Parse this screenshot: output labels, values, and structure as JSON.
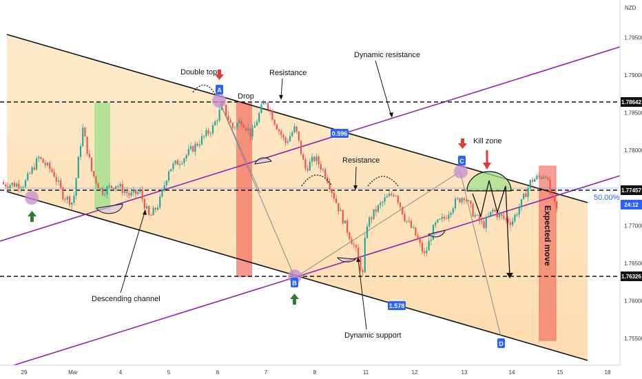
{
  "chart_data": {
    "type": "candlestick",
    "currency": "NZD",
    "ylim": [
      1.75,
      1.798
    ],
    "y_ticks": [
      1.755,
      1.76,
      1.765,
      1.77,
      1.775,
      1.78,
      1.785,
      1.79,
      1.795
    ],
    "x_ticks": [
      "29",
      "Mar",
      "4",
      "5",
      "6",
      "7",
      "8",
      "11",
      "12",
      "13",
      "14",
      "15",
      "18"
    ],
    "price_labels": [
      {
        "value": "1.78642",
        "color": "#111111"
      },
      {
        "value": "1.77457",
        "color": "#111111"
      },
      {
        "value": "24:12",
        "color": "#2962ff"
      },
      {
        "value": "1.76326",
        "color": "#111111"
      }
    ],
    "fib_label": "50.00%",
    "levels": {
      "dashed_top": 1.78642,
      "dashed_mid": 1.77457,
      "dashed_low": 1.76326
    },
    "price_series": [
      {
        "x": 0.0,
        "y": 1.7755
      },
      {
        "x": 0.3,
        "y": 1.779
      },
      {
        "x": 0.6,
        "y": 1.777
      },
      {
        "x": 0.8,
        "y": 1.774
      },
      {
        "x": 1.0,
        "y": 1.773
      },
      {
        "x": 1.2,
        "y": 1.783
      },
      {
        "x": 1.4,
        "y": 1.777
      },
      {
        "x": 1.6,
        "y": 1.7745
      },
      {
        "x": 1.9,
        "y": 1.7755
      },
      {
        "x": 2.2,
        "y": 1.774
      },
      {
        "x": 2.4,
        "y": 1.7745
      },
      {
        "x": 2.6,
        "y": 1.771
      },
      {
        "x": 2.8,
        "y": 1.773
      },
      {
        "x": 3.0,
        "y": 1.7775
      },
      {
        "x": 3.3,
        "y": 1.779
      },
      {
        "x": 3.6,
        "y": 1.781
      },
      {
        "x": 3.9,
        "y": 1.783
      },
      {
        "x": 4.1,
        "y": 1.786
      },
      {
        "x": 4.3,
        "y": 1.783
      },
      {
        "x": 4.5,
        "y": 1.784
      },
      {
        "x": 4.7,
        "y": 1.782
      },
      {
        "x": 4.9,
        "y": 1.7855
      },
      {
        "x": 5.0,
        "y": 1.7866
      },
      {
        "x": 5.2,
        "y": 1.7835
      },
      {
        "x": 5.4,
        "y": 1.781
      },
      {
        "x": 5.6,
        "y": 1.783
      },
      {
        "x": 5.8,
        "y": 1.7775
      },
      {
        "x": 6.0,
        "y": 1.779
      },
      {
        "x": 6.2,
        "y": 1.777
      },
      {
        "x": 6.4,
        "y": 1.7735
      },
      {
        "x": 6.6,
        "y": 1.77
      },
      {
        "x": 6.8,
        "y": 1.7668
      },
      {
        "x": 6.95,
        "y": 1.7633
      },
      {
        "x": 7.0,
        "y": 1.77
      },
      {
        "x": 7.2,
        "y": 1.772
      },
      {
        "x": 7.4,
        "y": 1.7735
      },
      {
        "x": 7.6,
        "y": 1.7745
      },
      {
        "x": 7.8,
        "y": 1.771
      },
      {
        "x": 8.0,
        "y": 1.769
      },
      {
        "x": 8.2,
        "y": 1.766
      },
      {
        "x": 8.4,
        "y": 1.77
      },
      {
        "x": 8.6,
        "y": 1.771
      },
      {
        "x": 8.8,
        "y": 1.773
      },
      {
        "x": 9.0,
        "y": 1.774
      },
      {
        "x": 9.2,
        "y": 1.7715
      },
      {
        "x": 9.4,
        "y": 1.77
      },
      {
        "x": 9.6,
        "y": 1.772
      },
      {
        "x": 9.8,
        "y": 1.771
      },
      {
        "x": 10.0,
        "y": 1.7705
      },
      {
        "x": 10.2,
        "y": 1.773
      },
      {
        "x": 10.4,
        "y": 1.776
      },
      {
        "x": 10.6,
        "y": 1.7765
      },
      {
        "x": 10.7,
        "y": 1.777
      },
      {
        "x": 10.8,
        "y": 1.774
      },
      {
        "x": 10.95,
        "y": 1.7718
      }
    ],
    "annotations": [
      {
        "text": "Double top"
      },
      {
        "text": "Drop"
      },
      {
        "text": "Resistance"
      },
      {
        "text": "Dynamic resistance"
      },
      {
        "text": "Resistance"
      },
      {
        "text": "Kill zone"
      },
      {
        "text": "Descending channel"
      },
      {
        "text": "Dynamic support"
      },
      {
        "text": "Expected move"
      }
    ],
    "point_labels": [
      "A",
      "B",
      "C",
      "D"
    ],
    "badges": [
      "0.596",
      "1.578"
    ],
    "colors": {
      "channel_fill": "#fde7c4",
      "purple_line": "#8e24aa",
      "green_zone": "#9be18a",
      "red_zone": "#f26b5b",
      "bull_candle": "#26a69a",
      "bear_candle": "#ef5350",
      "label_blue": "#2962ff",
      "arrow_red": "#e53935",
      "arrow_green": "#2e7d32"
    }
  }
}
